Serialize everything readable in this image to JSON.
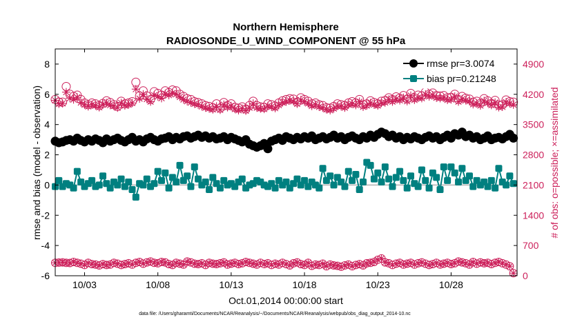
{
  "chart_data": {
    "type": "line",
    "title": "Northern Hemisphere",
    "subtitle": "RADIOSONDE_U_WIND_COMPONENT @ 55 hPa",
    "xlabel": "Oct.01,2014 00:00:00 start",
    "ylabel": "rmse and bias (model - observation)",
    "ylabel_right": "# of obs: o=possible; ×=assimilated",
    "xlim": [
      1,
      32.5
    ],
    "ylim": [
      -6,
      9
    ],
    "ylim_right": [
      0,
      5250
    ],
    "x_ticks": [
      3,
      8,
      13,
      18,
      23,
      28
    ],
    "x_tick_labels": [
      "10/03",
      "10/08",
      "10/13",
      "10/18",
      "10/23",
      "10/28"
    ],
    "y_ticks": [
      -6,
      -4,
      -2,
      0,
      2,
      4,
      6,
      8
    ],
    "y_tick_labels": [
      "-6",
      "-4",
      "-2",
      "0",
      "2",
      "4",
      "6",
      "8"
    ],
    "y_right_ticks": [
      0,
      700,
      1400,
      2100,
      2800,
      3500,
      4200,
      4900
    ],
    "y_right_tick_labels": [
      "0",
      "700",
      "1400",
      "2100",
      "2800",
      "3500",
      "4200",
      "4900"
    ],
    "legend_position": "top-right",
    "x_start": 1,
    "x_step": 0.25,
    "series": [
      {
        "name": "rmse pr=3.0074",
        "axis": "left",
        "color": "#000000",
        "marker": "circle",
        "values": [
          2.9,
          2.8,
          2.85,
          2.95,
          3.0,
          2.9,
          3.1,
          2.95,
          2.85,
          3.0,
          2.9,
          3.05,
          2.95,
          2.8,
          3.05,
          2.9,
          3.0,
          3.1,
          2.95,
          2.85,
          3.0,
          3.15,
          2.9,
          3.0,
          2.85,
          3.05,
          3.15,
          3.0,
          2.9,
          3.05,
          3.1,
          3.2,
          3.0,
          3.15,
          3.05,
          3.2,
          3.25,
          3.1,
          3.2,
          3.3,
          3.15,
          3.25,
          3.1,
          3.2,
          3.05,
          3.1,
          3.2,
          3.0,
          3.15,
          3.05,
          2.95,
          2.85,
          3.0,
          2.7,
          2.6,
          2.5,
          2.6,
          2.75,
          2.4,
          2.9,
          3.0,
          3.1,
          2.95,
          3.2,
          3.1,
          3.0,
          3.15,
          3.05,
          3.2,
          3.1,
          3.25,
          3.0,
          3.1,
          3.2,
          3.05,
          3.15,
          3.3,
          3.1,
          3.2,
          3.0,
          3.15,
          3.25,
          3.1,
          3.0,
          3.2,
          3.1,
          3.3,
          3.15,
          3.35,
          3.5,
          3.4,
          3.2,
          3.3,
          3.1,
          3.2,
          3.0,
          3.15,
          3.05,
          3.2,
          3.1,
          3.0,
          3.15,
          3.25,
          3.1,
          3.2,
          3.0,
          3.15,
          3.3,
          3.1,
          3.4,
          3.3,
          3.5,
          3.2,
          3.3,
          3.1,
          3.2,
          3.0,
          3.1,
          3.25,
          3.0,
          3.1,
          3.15,
          3.05,
          3.2,
          3.35,
          3.1
        ]
      },
      {
        "name": "bias pr=0.21248",
        "axis": "left",
        "color": "#008080",
        "marker": "square",
        "values": [
          -0.1,
          0.3,
          -0.1,
          0.1,
          0.0,
          -0.2,
          0.9,
          0.2,
          -0.1,
          0.1,
          0.3,
          -0.1,
          0.0,
          0.6,
          0.1,
          -0.2,
          0.2,
          0.0,
          0.4,
          -0.1,
          0.2,
          -0.3,
          -0.8,
          0.1,
          0.0,
          0.4,
          -0.1,
          0.1,
          0.9,
          0.3,
          0.8,
          -0.2,
          0.5,
          0.2,
          1.3,
          0.3,
          0.6,
          -0.1,
          1.2,
          0.4,
          0.0,
          0.2,
          -0.3,
          0.5,
          0.1,
          -0.2,
          0.3,
          0.0,
          0.1,
          -0.1,
          0.2,
          0.4,
          -0.2,
          0.0,
          0.1,
          0.3,
          0.2,
          0.0,
          -0.1,
          0.1,
          -0.2,
          0.3,
          0.0,
          0.2,
          -0.2,
          0.1,
          0.4,
          0.0,
          0.3,
          -0.1,
          0.2,
          0.0,
          -0.2,
          1.1,
          0.3,
          0.6,
          0.0,
          0.5,
          0.2,
          -0.1,
          0.9,
          0.3,
          0.7,
          -0.3,
          0.2,
          1.5,
          1.3,
          0.4,
          0.8,
          0.2,
          1.2,
          0.4,
          -0.1,
          0.5,
          0.9,
          0.3,
          -0.2,
          0.6,
          0.1,
          -0.1,
          1.0,
          0.3,
          -0.2,
          0.8,
          0.5,
          -0.3,
          1.2,
          0.3,
          1.2,
          0.8,
          0.2,
          1.1,
          0.3,
          0.6,
          -0.1,
          0.3,
          0.0,
          0.2,
          -0.1,
          0.3,
          -0.2,
          1.1,
          0.2,
          0.0,
          0.6,
          0.1
        ]
      },
      {
        "name": "obs possible",
        "axis": "right",
        "color": "#cc1f5a",
        "marker": "circle-open",
        "values": [
          4080,
          4020,
          4020,
          4380,
          4200,
          4150,
          4180,
          4080,
          4000,
          3960,
          4000,
          3980,
          3940,
          3990,
          4050,
          4010,
          3960,
          3920,
          4040,
          3980,
          4000,
          4030,
          4480,
          4160,
          4280,
          4160,
          4080,
          4260,
          4220,
          4180,
          4280,
          4240,
          4300,
          4280,
          4200,
          4150,
          4100,
          4080,
          4030,
          4010,
          3980,
          3940,
          3920,
          3890,
          3980,
          3880,
          4010,
          3940,
          3980,
          3900,
          3880,
          3910,
          3860,
          3940,
          4040,
          3940,
          3910,
          3900,
          3980,
          3960,
          3930,
          4000,
          4050,
          4080,
          4100,
          4090,
          4020,
          4120,
          4080,
          4040,
          3980,
          4000,
          3960,
          3940,
          3890,
          3880,
          3920,
          3980,
          3960,
          3940,
          4000,
          4030,
          4000,
          4080,
          3960,
          3980,
          4050,
          4010,
          3980,
          4040,
          4060,
          4120,
          4080,
          4140,
          4110,
          4170,
          4090,
          4220,
          4120,
          4180,
          4160,
          4250,
          4200,
          4230,
          4170,
          4160,
          4170,
          4120,
          4130,
          4200,
          4080,
          4150,
          4110,
          4090,
          4020,
          4040,
          3990,
          4100,
          4050,
          3990,
          4060,
          3950,
          3960,
          4070,
          4030,
          4020
        ]
      },
      {
        "name": "obs assimilated",
        "axis": "right",
        "color": "#cc1f5a",
        "marker": "asterisk",
        "values": [
          4060,
          3980,
          3990,
          4250,
          4110,
          4080,
          4130,
          4010,
          3960,
          3920,
          3960,
          3940,
          3900,
          3960,
          4000,
          3950,
          3930,
          3890,
          4000,
          3940,
          3960,
          4000,
          4320,
          4100,
          4200,
          4090,
          4030,
          4180,
          4150,
          4110,
          4210,
          4180,
          4230,
          4200,
          4140,
          4080,
          4040,
          4010,
          3980,
          3960,
          3920,
          3890,
          3870,
          3850,
          3920,
          3840,
          3960,
          3900,
          3930,
          3860,
          3830,
          3870,
          3820,
          3890,
          3990,
          3890,
          3870,
          3860,
          3930,
          3910,
          3880,
          3950,
          4010,
          4030,
          4060,
          4040,
          3980,
          4070,
          4030,
          3990,
          3930,
          3960,
          3910,
          3890,
          3850,
          3830,
          3870,
          3930,
          3920,
          3890,
          3960,
          3980,
          3950,
          4030,
          3910,
          3940,
          4000,
          3960,
          3940,
          4000,
          4010,
          4080,
          4030,
          4090,
          4060,
          4120,
          4040,
          4170,
          4070,
          4120,
          4110,
          4200,
          4150,
          4180,
          4120,
          4110,
          4120,
          4070,
          4080,
          4150,
          4030,
          4090,
          4060,
          4040,
          3970,
          3990,
          3940,
          4050,
          4000,
          3950,
          4010,
          3900,
          3910,
          4020,
          3990,
          3960
        ]
      },
      {
        "name": "obs possible (bottom)",
        "axis": "right",
        "color": "#cc1f5a",
        "marker": "circle-plus",
        "values": [
          300,
          305,
          310,
          300,
          295,
          320,
          300,
          280,
          250,
          300,
          270,
          260,
          240,
          270,
          250,
          260,
          300,
          280,
          250,
          270,
          290,
          260,
          300,
          320,
          280,
          310,
          330,
          300,
          290,
          320,
          310,
          270,
          250,
          300,
          280,
          260,
          330,
          310,
          280,
          270,
          290,
          250,
          300,
          280,
          270,
          290,
          310,
          260,
          280,
          300,
          270,
          290,
          320,
          300,
          280,
          260,
          300,
          270,
          290,
          250,
          280,
          260,
          300,
          270,
          240,
          290,
          310,
          270,
          250,
          300,
          230,
          260,
          250,
          280,
          220,
          260,
          240,
          230,
          210,
          240,
          260,
          220,
          250,
          270,
          240,
          290,
          300,
          320,
          370,
          400,
          310,
          290,
          250,
          280,
          300,
          260,
          280,
          300,
          260,
          290,
          310,
          280,
          250,
          270,
          300,
          260,
          280,
          300,
          270,
          290,
          330,
          310,
          290,
          260,
          320,
          280,
          310,
          290,
          300,
          270,
          300,
          320,
          290,
          260,
          220,
          60
        ]
      }
    ],
    "footnote": "data file: /Users/gharamti/Documents/NCAR/Reanalysis/~/Documents/NCAR/Reanalysis/webpub/obs_diag_output_2014-10.nc"
  }
}
